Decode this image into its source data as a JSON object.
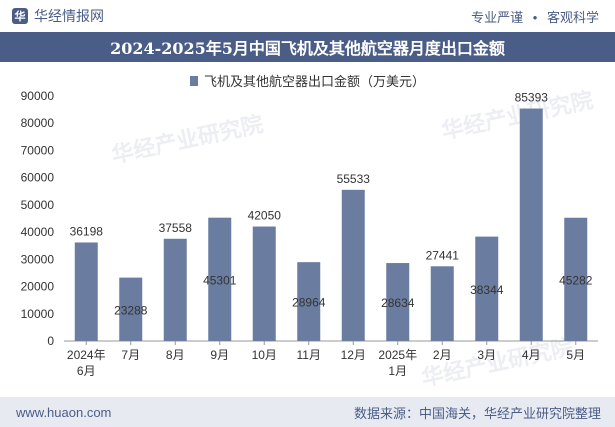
{
  "header": {
    "logo_glyph": "华",
    "brand": "华经情报网",
    "tag1": "专业严谨",
    "separator": "•",
    "tag2": "客观科学"
  },
  "watermark": "华经产业研究院",
  "footer": {
    "website": "www.huaon.com",
    "source": "数据来源：中国海关，华经产业研究院整理"
  },
  "colors": {
    "bar": "#6a7da0",
    "title_bg": "#4a5d86"
  },
  "chart_data": {
    "type": "bar",
    "title": "2024-2025年5月中国飞机及其他航空器月度出口金额",
    "legend": "飞机及其他航空器出口金额（万美元）",
    "categories": [
      [
        "2024年",
        "6月"
      ],
      [
        "7月"
      ],
      [
        "8月"
      ],
      [
        "9月"
      ],
      [
        "10月"
      ],
      [
        "11月"
      ],
      [
        "12月"
      ],
      [
        "2025年",
        "1月"
      ],
      [
        "2月"
      ],
      [
        "3月"
      ],
      [
        "4月"
      ],
      [
        "5月"
      ]
    ],
    "values": [
      36198,
      23288,
      37558,
      45301,
      42050,
      28964,
      55533,
      28634,
      27441,
      38344,
      85393,
      45282
    ],
    "label_placement": [
      "above",
      "inside",
      "above",
      "inside",
      "above",
      "inside",
      "above",
      "inside",
      "above",
      "inside",
      "above",
      "inside"
    ],
    "ylim": [
      0,
      90000
    ],
    "yticks": [
      0,
      10000,
      20000,
      30000,
      40000,
      50000,
      60000,
      70000,
      80000,
      90000
    ],
    "xlabel": "",
    "ylabel": "",
    "grid": false
  }
}
